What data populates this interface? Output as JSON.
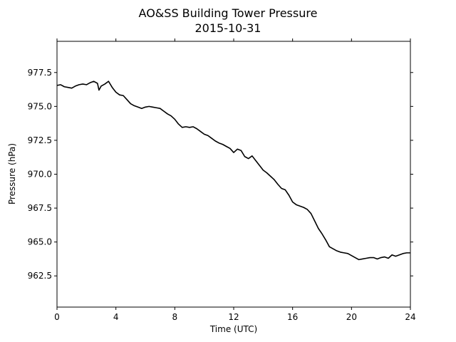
{
  "chart_data": {
    "type": "line",
    "title": "AO&SS Building Tower Pressure",
    "subtitle": "2015-10-31",
    "xlabel": "Time (UTC)",
    "ylabel": "Pressure (hPa)",
    "xlim": [
      0,
      24
    ],
    "ylim": [
      960.2,
      979.8
    ],
    "x_ticks": [
      0,
      4,
      8,
      12,
      16,
      20,
      24
    ],
    "x_tick_labels": [
      "0",
      "4",
      "8",
      "12",
      "16",
      "20",
      "24"
    ],
    "y_ticks": [
      962.5,
      965.0,
      967.5,
      970.0,
      972.5,
      975.0,
      977.5
    ],
    "y_tick_labels": [
      "962.5",
      "965.0",
      "967.5",
      "970.0",
      "972.5",
      "975.0",
      "977.5"
    ],
    "grid": false,
    "line_color": "#000000",
    "series": [
      {
        "x": [
          0,
          0.25,
          0.5,
          0.75,
          1.0,
          1.25,
          1.5,
          1.75,
          2.0,
          2.25,
          2.5,
          2.75,
          2.85,
          3.0,
          3.25,
          3.5,
          3.75,
          4.0,
          4.25,
          4.5,
          4.75,
          5.0,
          5.25,
          5.5,
          5.75,
          6.0,
          6.25,
          6.5,
          6.75,
          7.0,
          7.25,
          7.5,
          7.75,
          8.0,
          8.25,
          8.5,
          8.75,
          9.0,
          9.25,
          9.5,
          9.75,
          10.0,
          10.25,
          10.5,
          10.75,
          11.0,
          11.25,
          11.5,
          11.75,
          12.0,
          12.25,
          12.5,
          12.75,
          13.0,
          13.25,
          13.5,
          13.75,
          14.0,
          14.25,
          14.5,
          14.75,
          15.0,
          15.25,
          15.5,
          15.75,
          16.0,
          16.25,
          16.5,
          16.75,
          17.0,
          17.25,
          17.5,
          17.75,
          18.0,
          18.25,
          18.5,
          18.75,
          19.0,
          19.25,
          19.5,
          19.75,
          20.0,
          20.25,
          20.5,
          20.75,
          21.0,
          21.25,
          21.5,
          21.75,
          22.0,
          22.25,
          22.5,
          22.75,
          23.0,
          23.25,
          23.5,
          23.75,
          24.0
        ],
        "y": [
          976.55,
          976.6,
          976.45,
          976.4,
          976.35,
          976.5,
          976.6,
          976.65,
          976.6,
          976.75,
          976.85,
          976.7,
          976.2,
          976.5,
          976.65,
          976.85,
          976.4,
          976.05,
          975.85,
          975.8,
          975.5,
          975.2,
          975.05,
          974.95,
          974.85,
          974.95,
          975.0,
          974.95,
          974.9,
          974.85,
          974.65,
          974.45,
          974.3,
          974.05,
          973.7,
          973.45,
          973.5,
          973.45,
          973.5,
          973.35,
          973.15,
          972.95,
          972.85,
          972.65,
          972.45,
          972.3,
          972.2,
          972.05,
          971.9,
          971.6,
          971.85,
          971.75,
          971.3,
          971.15,
          971.35,
          971.0,
          970.65,
          970.3,
          970.1,
          969.85,
          969.6,
          969.25,
          968.95,
          968.85,
          968.45,
          967.95,
          967.75,
          967.65,
          967.55,
          967.4,
          967.1,
          966.55,
          966.0,
          965.6,
          965.15,
          964.65,
          964.5,
          964.35,
          964.25,
          964.2,
          964.15,
          964.0,
          963.85,
          963.7,
          963.75,
          963.8,
          963.85,
          963.85,
          963.75,
          963.85,
          963.9,
          963.8,
          964.05,
          963.95,
          964.05,
          964.15,
          964.2,
          964.2
        ]
      }
    ]
  }
}
